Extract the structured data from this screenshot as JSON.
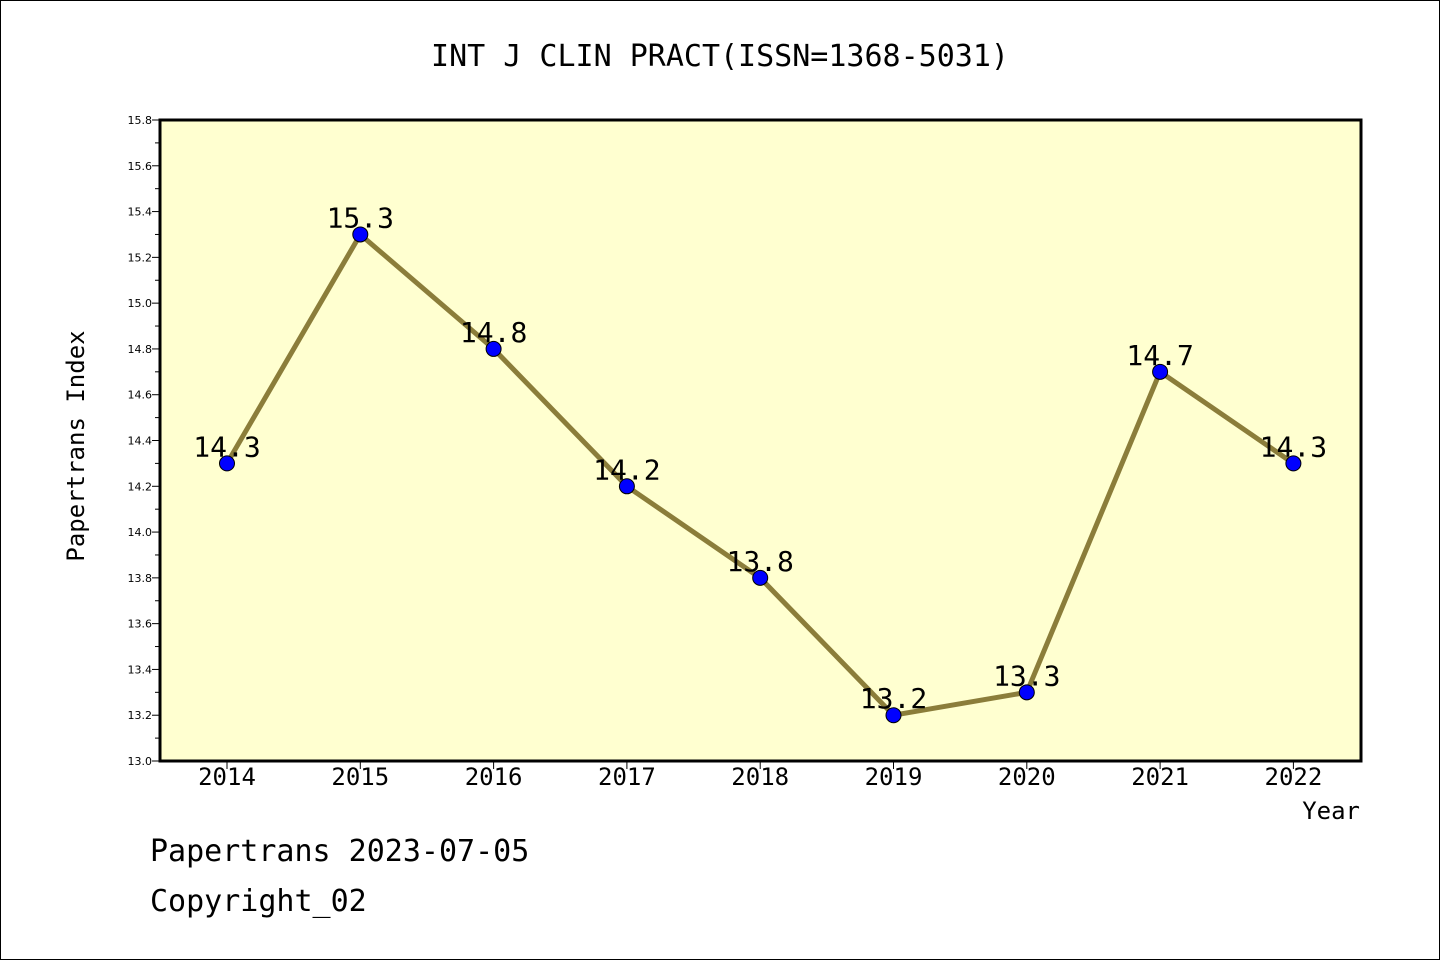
{
  "chart_data": {
    "type": "line",
    "title": "INT J CLIN PRACT(ISSN=1368-5031)",
    "xlabel": "Year",
    "ylabel": "Papertrans Index",
    "categories": [
      "2014",
      "2015",
      "2016",
      "2017",
      "2018",
      "2019",
      "2020",
      "2021",
      "2022"
    ],
    "series": [
      {
        "values": [
          14.3,
          15.3,
          14.8,
          14.2,
          13.8,
          13.2,
          13.3,
          14.7,
          14.3
        ],
        "labels": [
          "14.3",
          "15.3",
          "14.8",
          "14.2",
          "13.8",
          "13.2",
          "13.3",
          "14.7",
          "14.3"
        ]
      }
    ],
    "ylim": [
      13.0,
      15.8
    ],
    "yticks": [
      "13.0",
      "13.2",
      "13.4",
      "13.6",
      "13.8",
      "14.0",
      "14.2",
      "14.4",
      "14.6",
      "14.8",
      "15.0",
      "15.2",
      "15.4",
      "15.6",
      "15.8"
    ],
    "grid": false,
    "legend": "none",
    "colors": {
      "plot_background": "#ffffd0",
      "line": "#8b7d3a",
      "marker": "#0000ff",
      "axis": "#000000"
    }
  },
  "footer": {
    "line1": "Papertrans 2023-07-05",
    "line2": "Copyright_02"
  }
}
